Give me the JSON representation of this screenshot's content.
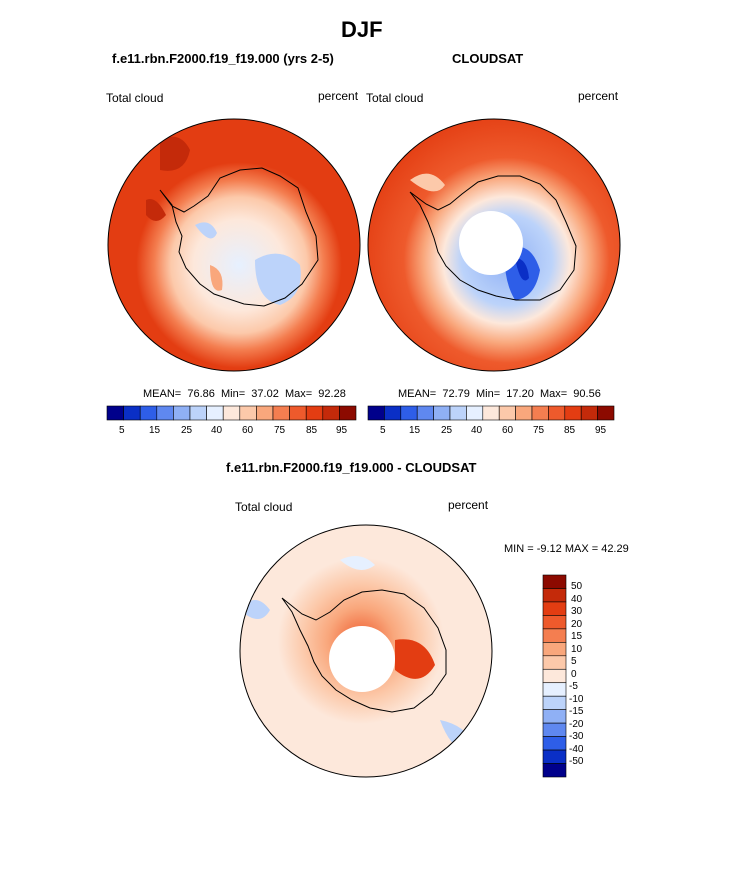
{
  "page_title": "DJF",
  "palette": [
    "#00008b",
    "#0a2fc6",
    "#2e5ee8",
    "#5f88f0",
    "#8fb0f5",
    "#bcd3fa",
    "#e6f0ff",
    "#fde8db",
    "#fcc9aa",
    "#f9a77c",
    "#f47e50",
    "#ee5a2c",
    "#e33d12",
    "#c42a0a",
    "#8c0a00"
  ],
  "chart_data": [
    {
      "type": "heatmap",
      "projection": "south-polar-stereographic",
      "title": "f.e11.rbn.F2000.f19_f19.000 (yrs 2-5)",
      "variable_label": "Total cloud",
      "units_label": "percent",
      "stats": {
        "mean_label": "MEAN=",
        "mean": "76.86",
        "min_label": "Min=",
        "min": "37.02",
        "max_label": "Max=",
        "max": "92.28"
      },
      "colorbar_ticks": [
        "5",
        "15",
        "25",
        "40",
        "60",
        "75",
        "85",
        "95"
      ]
    },
    {
      "type": "heatmap",
      "projection": "south-polar-stereographic",
      "title": "CLOUDSAT",
      "variable_label": "Total cloud",
      "units_label": "percent",
      "stats": {
        "mean_label": "MEAN=",
        "mean": "72.79",
        "min_label": "Min=",
        "min": "17.20",
        "max_label": "Max=",
        "max": "90.56"
      },
      "colorbar_ticks": [
        "5",
        "15",
        "25",
        "40",
        "60",
        "75",
        "85",
        "95"
      ]
    },
    {
      "type": "heatmap",
      "projection": "south-polar-stereographic",
      "title": "f.e11.rbn.F2000.f19_f19.000 - CLOUDSAT",
      "variable_label": "Total cloud",
      "units_label": "percent",
      "minmax_text": "MIN =  -9.12 MAX =  42.29",
      "colorbar_ticks": [
        "50",
        "40",
        "30",
        "20",
        "15",
        "10",
        "5",
        "0",
        "-5",
        "-10",
        "-15",
        "-20",
        "-30",
        "-40",
        "-50"
      ]
    }
  ]
}
